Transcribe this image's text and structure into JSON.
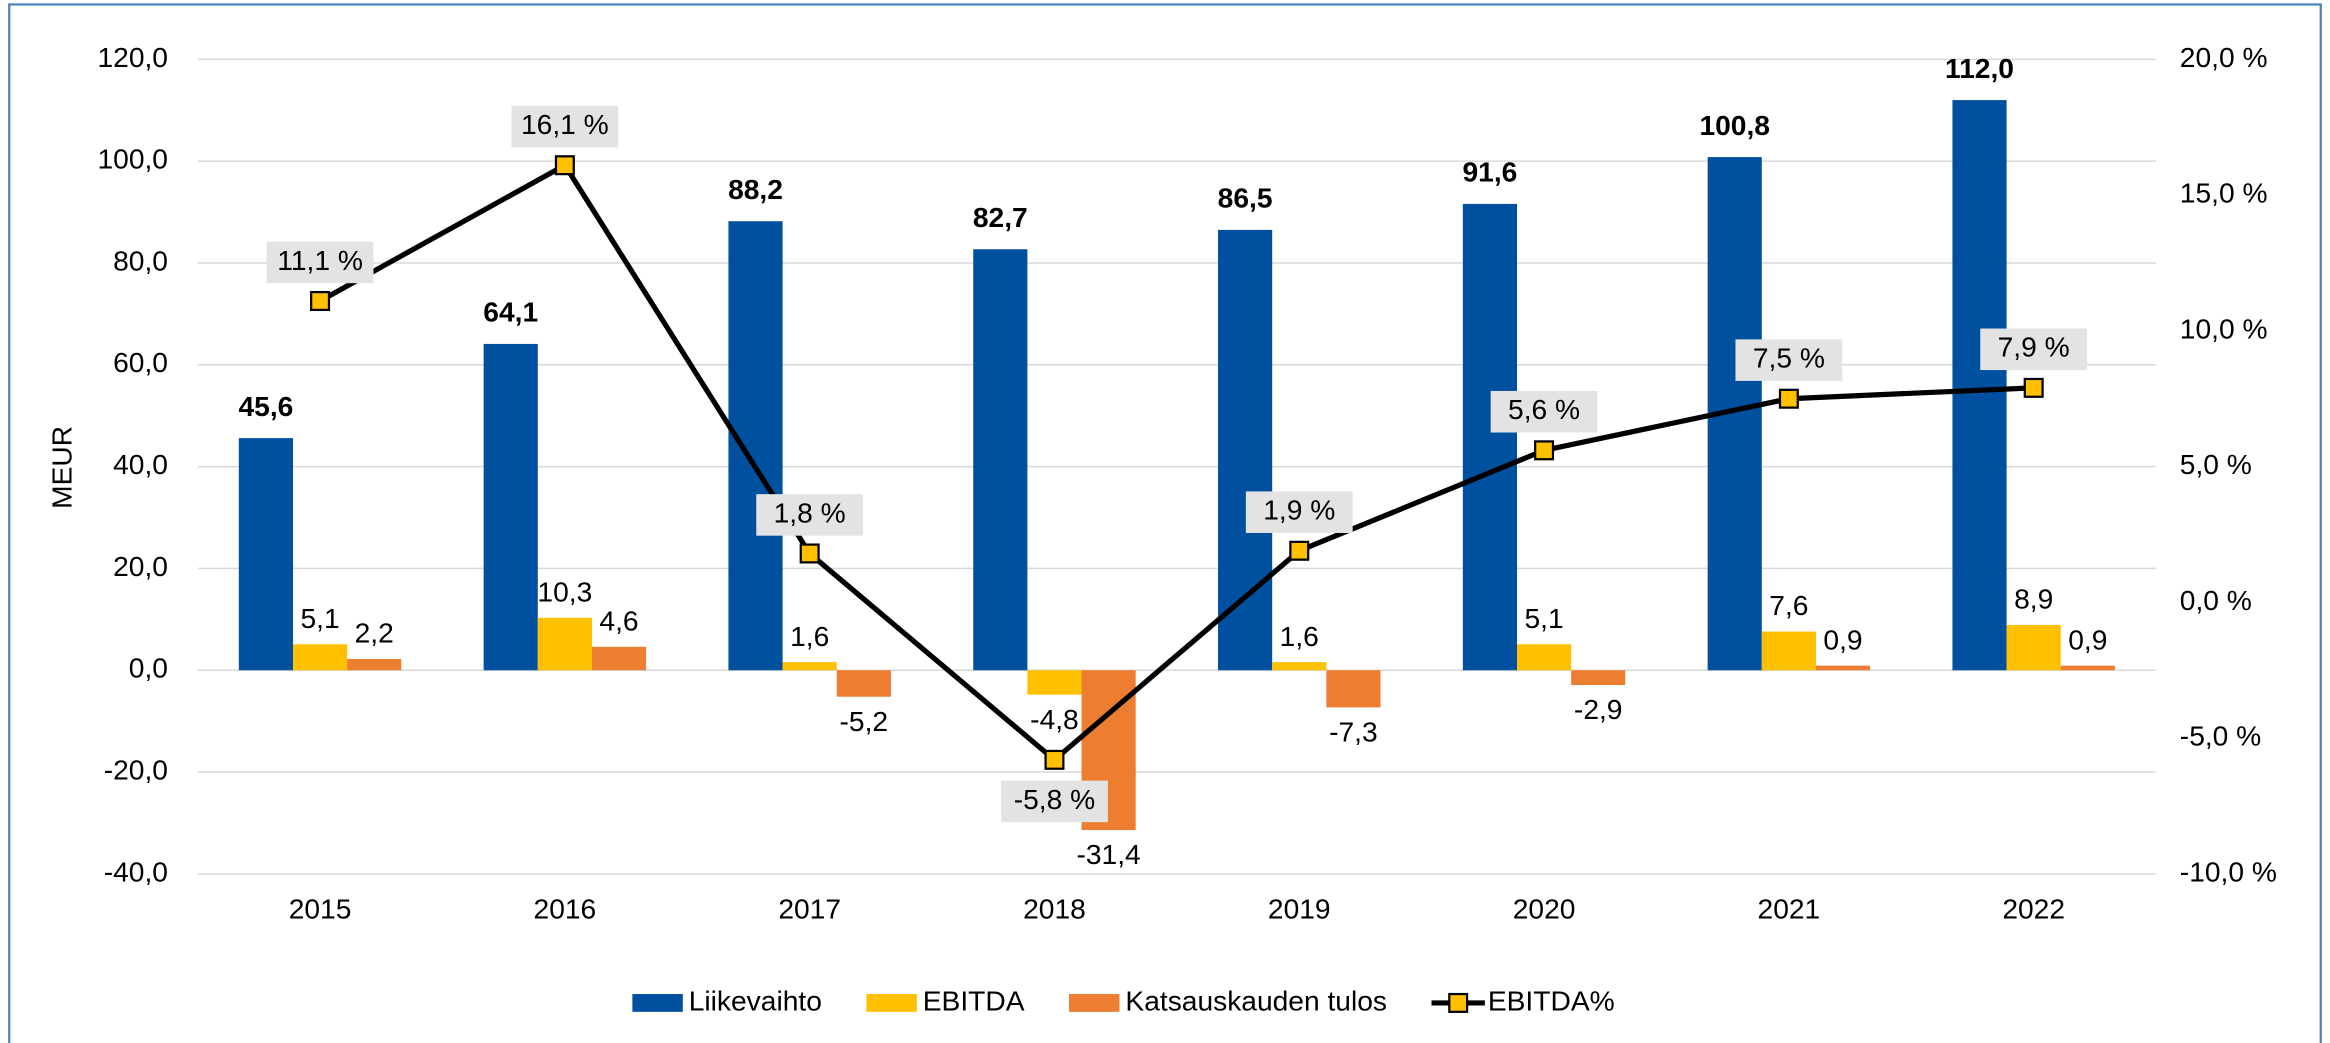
{
  "chart_data": {
    "type": "bar",
    "ylabel": "MEUR",
    "categories": [
      "2015",
      "2016",
      "2017",
      "2018",
      "2019",
      "2020",
      "2021",
      "2022"
    ],
    "ylim": [
      -40,
      120
    ],
    "yticks": [
      {
        "value": -40,
        "label": "-40,0"
      },
      {
        "value": -20,
        "label": "-20,0"
      },
      {
        "value": 0,
        "label": "0,0"
      },
      {
        "value": 20,
        "label": "20,0"
      },
      {
        "value": 40,
        "label": "40,0"
      },
      {
        "value": 60,
        "label": "60,0"
      },
      {
        "value": 80,
        "label": "80,0"
      },
      {
        "value": 100,
        "label": "100,0"
      },
      {
        "value": 120,
        "label": "120,0"
      }
    ],
    "y2lim": [
      -10,
      20
    ],
    "y2ticks": [
      {
        "value": -10,
        "label": "-10,0 %"
      },
      {
        "value": -5,
        "label": "-5,0 %"
      },
      {
        "value": 0,
        "label": "0,0 %"
      },
      {
        "value": 5,
        "label": "5,0 %"
      },
      {
        "value": 10,
        "label": "10,0 %"
      },
      {
        "value": 15,
        "label": "15,0 %"
      },
      {
        "value": 20,
        "label": "20,0 %"
      }
    ],
    "grid": true,
    "legend": "bottom",
    "series": [
      {
        "name": "Liikevaihto",
        "type": "bar",
        "color": "#0050a0",
        "values": [
          45.6,
          64.1,
          88.2,
          82.7,
          86.5,
          91.6,
          100.8,
          112.0
        ],
        "value_labels": [
          "45,6",
          "64,1",
          "88,2",
          "82,7",
          "86,5",
          "91,6",
          "100,8",
          "112,0"
        ]
      },
      {
        "name": "EBITDA",
        "type": "bar",
        "color": "#ffc000",
        "values": [
          5.1,
          10.3,
          1.6,
          -4.8,
          1.6,
          5.1,
          7.6,
          8.9
        ],
        "value_labels": [
          "5,1",
          "10,3",
          "1,6",
          "-4,8",
          "1,6",
          "5,1",
          "7,6",
          "8,9"
        ]
      },
      {
        "name": "Katsauskauden tulos",
        "type": "bar",
        "color": "#ed7d31",
        "values": [
          2.2,
          4.6,
          -5.2,
          -31.4,
          -7.3,
          -2.9,
          0.9,
          0.9
        ],
        "value_labels": [
          "2,2",
          "4,6",
          "-5,2",
          "-31,4",
          "-7,3",
          "-2,9",
          "0,9",
          "0,9"
        ]
      },
      {
        "name": "EBITDA%",
        "type": "line",
        "axis": "y2",
        "color": "#000000",
        "marker_color": "#ffc000",
        "values": [
          11.1,
          16.1,
          1.8,
          -5.8,
          1.9,
          5.6,
          7.5,
          7.9
        ],
        "value_labels": [
          "11,1 %",
          "16,1 %",
          "1,8 %",
          "-5,8 %",
          "1,9 %",
          "5,6 %",
          "7,5 %",
          "7,9 %"
        ]
      }
    ]
  }
}
